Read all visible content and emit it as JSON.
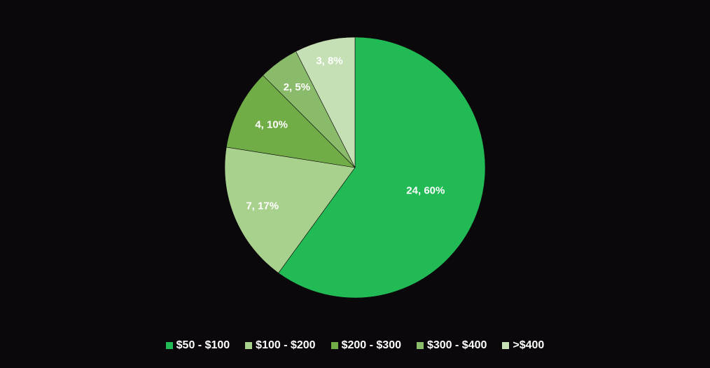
{
  "chart_data": {
    "type": "pie",
    "categories": [
      "$50 - $100",
      "$100 - $200",
      "$200 - $300",
      "$300 - $400",
      ">$400"
    ],
    "values": [
      24,
      7,
      4,
      2,
      3
    ],
    "percentages": [
      60,
      17,
      10,
      5,
      8
    ],
    "data_labels": [
      "24, 60%",
      "7, 17%",
      "4, 10%",
      "2, 5%",
      "3, 8%"
    ],
    "colors": [
      "#21ba55",
      "#a9d18e",
      "#70ad47",
      "#8abb6b",
      "#c5e0b4"
    ],
    "title": "",
    "legend_position": "bottom",
    "start_angle": "12 o'clock",
    "direction": "clockwise"
  }
}
